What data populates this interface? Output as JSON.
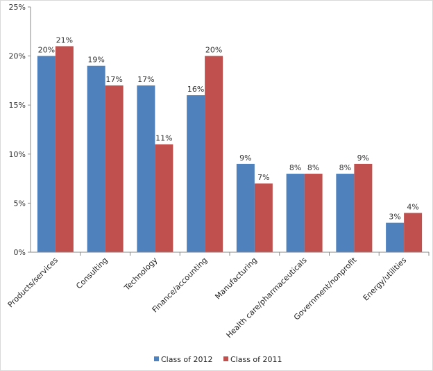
{
  "chart_data": {
    "type": "bar",
    "title": "",
    "xlabel": "",
    "ylabel": "",
    "ylim": [
      0,
      25
    ],
    "yticks": [
      "0%",
      "5%",
      "10%",
      "15%",
      "20%",
      "25%"
    ],
    "ytick_values": [
      0,
      5,
      10,
      15,
      20,
      25
    ],
    "grid": false,
    "legend_position": "bottom",
    "categories": [
      "Products/services",
      "Consulting",
      "Technology",
      "Finance/accounting",
      "Manufacturing",
      "Health care/pharmaceuticals",
      "Government/nonprofit",
      "Energy/utilities"
    ],
    "series": [
      {
        "name": "Class of 2012",
        "color": "#4f81bd",
        "values": [
          20,
          19,
          17,
          16,
          9,
          8,
          8,
          3
        ],
        "labels": [
          "20%",
          "19%",
          "17%",
          "16%",
          "9%",
          "8%",
          "8%",
          "3%"
        ]
      },
      {
        "name": "Class of 2011",
        "color": "#c0504d",
        "values": [
          21,
          17,
          11,
          20,
          7,
          8,
          9,
          4
        ],
        "labels": [
          "21%",
          "17%",
          "11%",
          "20%",
          "7%",
          "8%",
          "9%",
          "4%"
        ]
      }
    ]
  }
}
